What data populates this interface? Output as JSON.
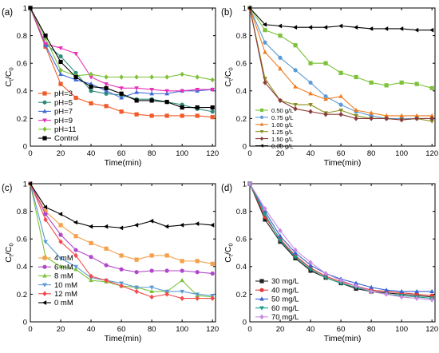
{
  "chart_data": [
    {
      "panel_label": "(a)",
      "type": "line",
      "xlabel": "Time(min)",
      "ylabel": "Ct/C0",
      "xlim": [
        0,
        122
      ],
      "ylim": [
        0,
        1.0
      ],
      "xticks": [
        0,
        20,
        40,
        60,
        80,
        100,
        120
      ],
      "yticks": [
        0.0,
        0.2,
        0.4,
        0.6,
        0.8,
        1.0
      ],
      "legend_placement": "bottom-left",
      "series": [
        {
          "name": "pH=3",
          "color": "#f05a28",
          "marker": "square",
          "x": [
            0,
            10,
            20,
            30,
            40,
            50,
            60,
            70,
            80,
            90,
            100,
            110,
            120
          ],
          "y": [
            1.0,
            0.72,
            0.45,
            0.35,
            0.31,
            0.29,
            0.25,
            0.23,
            0.22,
            0.22,
            0.22,
            0.22,
            0.21
          ]
        },
        {
          "name": "pH=5",
          "color": "#2e8b7a",
          "marker": "circle",
          "x": [
            0,
            10,
            20,
            30,
            40,
            50,
            60,
            70,
            80,
            90,
            100,
            110,
            120
          ],
          "y": [
            1.0,
            0.74,
            0.65,
            0.53,
            0.4,
            0.38,
            0.37,
            0.34,
            0.34,
            0.32,
            0.3,
            0.27,
            0.25
          ]
        },
        {
          "name": "pH=7",
          "color": "#3f6bd8",
          "marker": "triangle-up",
          "x": [
            0,
            10,
            20,
            30,
            40,
            50,
            60,
            70,
            80,
            90,
            100,
            110,
            120
          ],
          "y": [
            1.0,
            0.73,
            0.52,
            0.48,
            0.45,
            0.4,
            0.35,
            0.39,
            0.38,
            0.38,
            0.4,
            0.4,
            0.41
          ]
        },
        {
          "name": "pH=9",
          "color": "#e830b4",
          "marker": "triangle-down",
          "x": [
            0,
            10,
            20,
            30,
            40,
            50,
            60,
            70,
            80,
            90,
            100,
            110,
            120
          ],
          "y": [
            1.0,
            0.74,
            0.71,
            0.67,
            0.5,
            0.45,
            0.42,
            0.42,
            0.41,
            0.4,
            0.4,
            0.41,
            0.41
          ]
        },
        {
          "name": "pH=11",
          "color": "#7dc23a",
          "marker": "diamond",
          "x": [
            0,
            10,
            20,
            30,
            40,
            50,
            60,
            70,
            80,
            90,
            100,
            110,
            120
          ],
          "y": [
            1.0,
            0.78,
            0.55,
            0.51,
            0.52,
            0.5,
            0.5,
            0.5,
            0.5,
            0.5,
            0.52,
            0.5,
            0.48
          ]
        },
        {
          "name": "Control",
          "color": "#000000",
          "marker": "square",
          "x": [
            0,
            10,
            20,
            30,
            40,
            50,
            60,
            70,
            80,
            90,
            100,
            110,
            120
          ],
          "y": [
            1.0,
            0.8,
            0.61,
            0.5,
            0.43,
            0.42,
            0.38,
            0.33,
            0.33,
            0.32,
            0.28,
            0.28,
            0.28
          ]
        }
      ]
    },
    {
      "panel_label": "(b)",
      "type": "line",
      "xlabel": "Time(min)",
      "ylabel": "Ct/C0",
      "xlim": [
        0,
        122
      ],
      "ylim": [
        0,
        1.0
      ],
      "xticks": [
        0,
        20,
        40,
        60,
        80,
        100,
        120
      ],
      "yticks": [
        0.0,
        0.2,
        0.4,
        0.6,
        0.8,
        1.0
      ],
      "legend_placement": "bottom-left",
      "series": [
        {
          "name": "0.50 g/L",
          "color": "#7dc23a",
          "marker": "square",
          "x": [
            0,
            10,
            20,
            30,
            40,
            50,
            60,
            70,
            80,
            90,
            100,
            110,
            120
          ],
          "y": [
            1.0,
            0.84,
            0.8,
            0.73,
            0.6,
            0.6,
            0.53,
            0.5,
            0.46,
            0.44,
            0.46,
            0.45,
            0.42
          ]
        },
        {
          "name": "0.75 g/L",
          "color": "#5b9bd5",
          "marker": "circle",
          "x": [
            0,
            10,
            20,
            30,
            40,
            50,
            60,
            70,
            80,
            90,
            100,
            110,
            120
          ],
          "y": [
            1.0,
            0.75,
            0.64,
            0.55,
            0.46,
            0.36,
            0.3,
            0.25,
            0.22,
            0.2,
            0.2,
            0.2,
            0.2
          ]
        },
        {
          "name": "1.00 g/L",
          "color": "#f07b1f",
          "marker": "triangle-up",
          "x": [
            0,
            10,
            20,
            30,
            40,
            50,
            60,
            70,
            80,
            90,
            100,
            110,
            120
          ],
          "y": [
            1.0,
            0.68,
            0.56,
            0.43,
            0.38,
            0.34,
            0.36,
            0.26,
            0.24,
            0.22,
            0.22,
            0.22,
            0.22
          ]
        },
        {
          "name": "1.25 g/L",
          "color": "#8b8f1e",
          "marker": "triangle-down",
          "x": [
            0,
            10,
            20,
            30,
            40,
            50,
            60,
            70,
            80,
            90,
            100,
            110,
            120
          ],
          "y": [
            1.0,
            0.49,
            0.33,
            0.3,
            0.3,
            0.24,
            0.26,
            0.22,
            0.2,
            0.2,
            0.19,
            0.2,
            0.18
          ]
        },
        {
          "name": "1.50 g/L",
          "color": "#8b3a3a",
          "marker": "diamond",
          "x": [
            0,
            10,
            20,
            30,
            40,
            50,
            60,
            70,
            80,
            90,
            100,
            110,
            120
          ],
          "y": [
            1.0,
            0.46,
            0.33,
            0.27,
            0.25,
            0.23,
            0.23,
            0.2,
            0.2,
            0.2,
            0.19,
            0.2,
            0.2
          ]
        },
        {
          "name": "0.00 g/L",
          "color": "#000000",
          "marker": "triangle-left",
          "x": [
            0,
            10,
            20,
            30,
            40,
            50,
            60,
            70,
            80,
            90,
            100,
            110,
            120
          ],
          "y": [
            1.0,
            0.88,
            0.87,
            0.86,
            0.86,
            0.86,
            0.87,
            0.86,
            0.85,
            0.85,
            0.85,
            0.84,
            0.84
          ]
        }
      ]
    },
    {
      "panel_label": "(c)",
      "type": "line",
      "xlabel": "Time(min)",
      "ylabel": "Ct/C0",
      "xlim": [
        0,
        122
      ],
      "ylim": [
        0,
        1.0
      ],
      "xticks": [
        0,
        20,
        40,
        60,
        80,
        100,
        120
      ],
      "yticks": [
        0.0,
        0.2,
        0.4,
        0.6,
        0.8,
        1.0
      ],
      "legend_placement": "bottom-left",
      "series": [
        {
          "name": "4  mM",
          "color": "#f5a04a",
          "marker": "square",
          "x": [
            0,
            10,
            20,
            30,
            40,
            50,
            60,
            70,
            80,
            90,
            100,
            110,
            120
          ],
          "y": [
            1.0,
            0.8,
            0.7,
            0.62,
            0.57,
            0.53,
            0.48,
            0.45,
            0.48,
            0.48,
            0.44,
            0.44,
            0.42
          ]
        },
        {
          "name": "6  mM",
          "color": "#b046c9",
          "marker": "circle",
          "x": [
            0,
            10,
            20,
            30,
            40,
            50,
            60,
            70,
            80,
            90,
            100,
            110,
            120
          ],
          "y": [
            1.0,
            0.78,
            0.63,
            0.52,
            0.47,
            0.41,
            0.38,
            0.36,
            0.37,
            0.37,
            0.37,
            0.36,
            0.35
          ]
        },
        {
          "name": "8  mM",
          "color": "#7dc23a",
          "marker": "triangle-up",
          "x": [
            0,
            10,
            20,
            30,
            40,
            50,
            60,
            70,
            80,
            90,
            100,
            110,
            120
          ],
          "y": [
            1.0,
            0.47,
            0.4,
            0.38,
            0.3,
            0.29,
            0.26,
            0.25,
            0.22,
            0.22,
            0.3,
            0.19,
            0.18
          ]
        },
        {
          "name": "10 mM",
          "color": "#5b9bd5",
          "marker": "triangle-down",
          "x": [
            0,
            10,
            20,
            30,
            40,
            50,
            60,
            70,
            80,
            90,
            100,
            110,
            120
          ],
          "y": [
            1.0,
            0.58,
            0.46,
            0.4,
            0.32,
            0.3,
            0.28,
            0.25,
            0.25,
            0.22,
            0.22,
            0.2,
            0.19
          ]
        },
        {
          "name": "12 mM",
          "color": "#f24b4b",
          "marker": "diamond",
          "x": [
            0,
            10,
            20,
            30,
            40,
            50,
            60,
            70,
            80,
            90,
            100,
            110,
            120
          ],
          "y": [
            1.0,
            0.74,
            0.58,
            0.48,
            0.33,
            0.3,
            0.26,
            0.22,
            0.18,
            0.2,
            0.17,
            0.17,
            0.17
          ]
        },
        {
          "name": "0  mM",
          "color": "#000000",
          "marker": "triangle-left",
          "x": [
            0,
            10,
            20,
            30,
            40,
            50,
            60,
            70,
            80,
            90,
            100,
            110,
            120
          ],
          "y": [
            1.0,
            0.83,
            0.78,
            0.72,
            0.69,
            0.69,
            0.68,
            0.7,
            0.73,
            0.69,
            0.7,
            0.71,
            0.7
          ]
        }
      ]
    },
    {
      "panel_label": "(d)",
      "type": "line",
      "xlabel": "Time(min)",
      "ylabel": "Ct/C0",
      "xlim": [
        0,
        122
      ],
      "ylim": [
        0,
        1.0
      ],
      "xticks": [
        0,
        20,
        40,
        60,
        80,
        100,
        120
      ],
      "yticks": [
        0.0,
        0.2,
        0.4,
        0.6,
        0.8,
        1.0
      ],
      "legend_placement": "bottom-left",
      "series": [
        {
          "name": "30 mg/L",
          "color": "#222222",
          "marker": "square",
          "x": [
            0,
            10,
            20,
            30,
            40,
            50,
            60,
            70,
            80,
            90,
            100,
            110,
            120
          ],
          "y": [
            1.0,
            0.74,
            0.58,
            0.46,
            0.37,
            0.32,
            0.28,
            0.24,
            0.22,
            0.21,
            0.2,
            0.19,
            0.18
          ]
        },
        {
          "name": "40 mg/L",
          "color": "#e23a3a",
          "marker": "circle",
          "x": [
            0,
            10,
            20,
            30,
            40,
            50,
            60,
            70,
            80,
            90,
            100,
            110,
            120
          ],
          "y": [
            1.0,
            0.76,
            0.6,
            0.48,
            0.39,
            0.33,
            0.29,
            0.26,
            0.23,
            0.22,
            0.21,
            0.2,
            0.19
          ]
        },
        {
          "name": "50 mg/L",
          "color": "#3a62d6",
          "marker": "triangle-up",
          "x": [
            0,
            10,
            20,
            30,
            40,
            50,
            60,
            70,
            80,
            90,
            100,
            110,
            120
          ],
          "y": [
            1.0,
            0.8,
            0.62,
            0.5,
            0.41,
            0.35,
            0.31,
            0.28,
            0.25,
            0.23,
            0.22,
            0.22,
            0.22
          ]
        },
        {
          "name": "60 mg/L",
          "color": "#1a9e88",
          "marker": "triangle-down",
          "x": [
            0,
            10,
            20,
            30,
            40,
            50,
            60,
            70,
            80,
            90,
            100,
            110,
            120
          ],
          "y": [
            1.0,
            0.78,
            0.59,
            0.47,
            0.38,
            0.32,
            0.28,
            0.25,
            0.22,
            0.2,
            0.19,
            0.18,
            0.17
          ]
        },
        {
          "name": "70 mg/L",
          "color": "#c98be0",
          "marker": "diamond",
          "x": [
            0,
            10,
            20,
            30,
            40,
            50,
            60,
            70,
            80,
            90,
            100,
            110,
            120
          ],
          "y": [
            1.0,
            0.82,
            0.66,
            0.52,
            0.43,
            0.35,
            0.3,
            0.26,
            0.22,
            0.2,
            0.18,
            0.17,
            0.16
          ]
        }
      ]
    }
  ]
}
